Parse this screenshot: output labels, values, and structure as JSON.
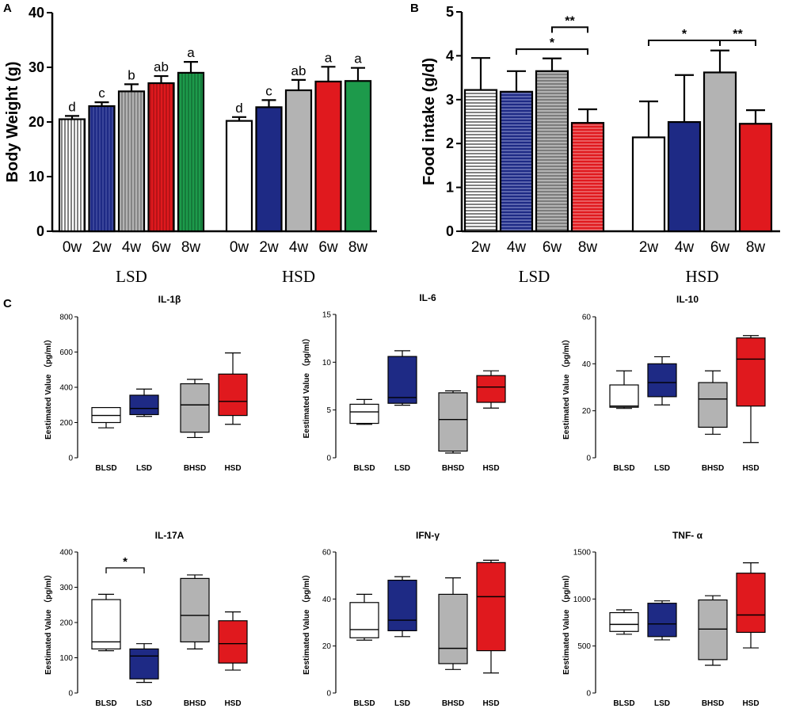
{
  "panel_letters": {
    "a": "A",
    "b": "B",
    "c": "C"
  },
  "chart_data": [
    {
      "id": "A",
      "type": "bar",
      "ylabel": "Body Weight (g)",
      "ylim": [
        0,
        40
      ],
      "yticks": [
        0,
        10,
        20,
        30,
        40
      ],
      "groups": [
        {
          "name": "LSD",
          "categories": [
            "0w",
            "2w",
            "4w",
            "6w",
            "8w"
          ],
          "values": [
            20.5,
            22.9,
            25.6,
            27.1,
            29.0
          ],
          "errors": [
            0.6,
            0.7,
            1.3,
            1.3,
            2.0
          ],
          "letters": [
            "d",
            "c",
            "b",
            "ab",
            "a"
          ]
        },
        {
          "name": "HSD",
          "categories": [
            "0w",
            "2w",
            "4w",
            "6w",
            "8w"
          ],
          "values": [
            20.2,
            22.7,
            25.8,
            27.4,
            27.5
          ],
          "errors": [
            0.7,
            1.3,
            1.9,
            2.7,
            2.4
          ],
          "letters": [
            "d",
            "c",
            "ab",
            "a",
            "a"
          ]
        }
      ],
      "fills": [
        "white",
        "#1e2a85",
        "gray",
        "#e0191e",
        "#1d9a4b"
      ]
    },
    {
      "id": "B",
      "type": "bar",
      "ylabel": "Food intake (g/d)",
      "ylim": [
        0,
        5
      ],
      "yticks": [
        0,
        1,
        2,
        3,
        4,
        5
      ],
      "groups": [
        {
          "name": "LSD",
          "categories": [
            "2w",
            "4w",
            "6w",
            "8w"
          ],
          "values": [
            3.22,
            3.18,
            3.65,
            2.47
          ],
          "errors": [
            0.73,
            0.47,
            0.29,
            0.31
          ],
          "fills": [
            "white",
            "#1e2a85",
            "gray",
            "#e0191e"
          ],
          "hatched": true
        },
        {
          "name": "HSD",
          "categories": [
            "2w",
            "4w",
            "6w",
            "8w"
          ],
          "values": [
            2.14,
            2.49,
            3.62,
            2.45
          ],
          "errors": [
            0.82,
            1.07,
            0.5,
            0.31
          ],
          "fills": [
            "white",
            "#1e2a85",
            "gray",
            "#e0191e"
          ],
          "hatched": false
        }
      ],
      "annotations": [
        {
          "from": "LSD 6w",
          "to": "LSD 8w",
          "label": "**"
        },
        {
          "from": "LSD 4w",
          "to": "LSD 8w",
          "label": "*"
        },
        {
          "from": "HSD 2w",
          "to": "HSD 6w",
          "label": "*"
        },
        {
          "from": "HSD 6w",
          "to": "HSD 8w",
          "label": "**"
        }
      ]
    },
    {
      "id": "C",
      "type": "box",
      "ylabel": "Eestimated Value （pg/ml）",
      "categories": [
        "BLSD",
        "LSD",
        "BHSD",
        "HSD"
      ],
      "fills": [
        "white",
        "#1e2a85",
        "gray",
        "#e0191e"
      ],
      "panels": [
        {
          "title": "IL-1β",
          "ylim": [
            0,
            800
          ],
          "yticks": [
            0,
            200,
            400,
            600,
            800
          ],
          "boxes": [
            {
              "min": 170,
              "q1": 200,
              "median": 240,
              "q3": 285,
              "max": 285
            },
            {
              "min": 235,
              "q1": 245,
              "median": 280,
              "q3": 355,
              "max": 390
            },
            {
              "min": 115,
              "q1": 145,
              "median": 300,
              "q3": 420,
              "max": 445
            },
            {
              "min": 190,
              "q1": 240,
              "median": 320,
              "q3": 475,
              "max": 595
            }
          ]
        },
        {
          "title": "IL-6",
          "ylim": [
            0,
            15
          ],
          "yticks": [
            0,
            5,
            10,
            15
          ],
          "boxes": [
            {
              "min": 3.5,
              "q1": 3.6,
              "median": 4.8,
              "q3": 5.6,
              "max": 6.1
            },
            {
              "min": 5.5,
              "q1": 5.7,
              "median": 6.3,
              "q3": 10.6,
              "max": 11.2
            },
            {
              "min": 0.5,
              "q1": 0.7,
              "median": 4.0,
              "q3": 6.8,
              "max": 7.0
            },
            {
              "min": 5.2,
              "q1": 5.8,
              "median": 7.4,
              "q3": 8.6,
              "max": 9.1
            }
          ]
        },
        {
          "title": "IL-10",
          "ylim": [
            0,
            60
          ],
          "yticks": [
            0,
            20,
            40,
            60
          ],
          "boxes": [
            {
              "min": 21,
              "q1": 21.5,
              "median": 22,
              "q3": 31,
              "max": 37
            },
            {
              "min": 22.5,
              "q1": 26,
              "median": 32,
              "q3": 40,
              "max": 43
            },
            {
              "min": 10,
              "q1": 13,
              "median": 25,
              "q3": 32,
              "max": 37
            },
            {
              "min": 6.5,
              "q1": 22,
              "median": 42,
              "q3": 51,
              "max": 52
            }
          ]
        },
        {
          "title": "IL-17A",
          "ylim": [
            0,
            400
          ],
          "yticks": [
            0,
            100,
            200,
            300,
            400
          ],
          "boxes": [
            {
              "min": 120,
              "q1": 125,
              "median": 145,
              "q3": 265,
              "max": 280
            },
            {
              "min": 30,
              "q1": 40,
              "median": 105,
              "q3": 125,
              "max": 140
            },
            {
              "min": 125,
              "q1": 145,
              "median": 220,
              "q3": 325,
              "max": 335
            },
            {
              "min": 65,
              "q1": 85,
              "median": 140,
              "q3": 205,
              "max": 230
            }
          ],
          "annotation": {
            "from": "BLSD",
            "to": "LSD",
            "label": "*"
          }
        },
        {
          "title": "IFN-γ",
          "ylim": [
            0,
            60
          ],
          "yticks": [
            0,
            20,
            40,
            60
          ],
          "boxes": [
            {
              "min": 22.5,
              "q1": 23.5,
              "median": 27,
              "q3": 38.5,
              "max": 42
            },
            {
              "min": 24,
              "q1": 26.5,
              "median": 31,
              "q3": 48,
              "max": 49.5
            },
            {
              "min": 10,
              "q1": 12.5,
              "median": 19,
              "q3": 42,
              "max": 49
            },
            {
              "min": 8.5,
              "q1": 18,
              "median": 41,
              "q3": 55.5,
              "max": 56.5
            }
          ]
        },
        {
          "title": "TNF- α",
          "ylim": [
            0,
            1500
          ],
          "yticks": [
            0,
            500,
            1000,
            1500
          ],
          "boxes": [
            {
              "min": 625,
              "q1": 655,
              "median": 730,
              "q3": 855,
              "max": 885
            },
            {
              "min": 565,
              "q1": 600,
              "median": 735,
              "q3": 955,
              "max": 980
            },
            {
              "min": 295,
              "q1": 355,
              "median": 680,
              "q3": 990,
              "max": 1035
            },
            {
              "min": 480,
              "q1": 645,
              "median": 830,
              "q3": 1275,
              "max": 1385
            }
          ]
        }
      ]
    }
  ]
}
